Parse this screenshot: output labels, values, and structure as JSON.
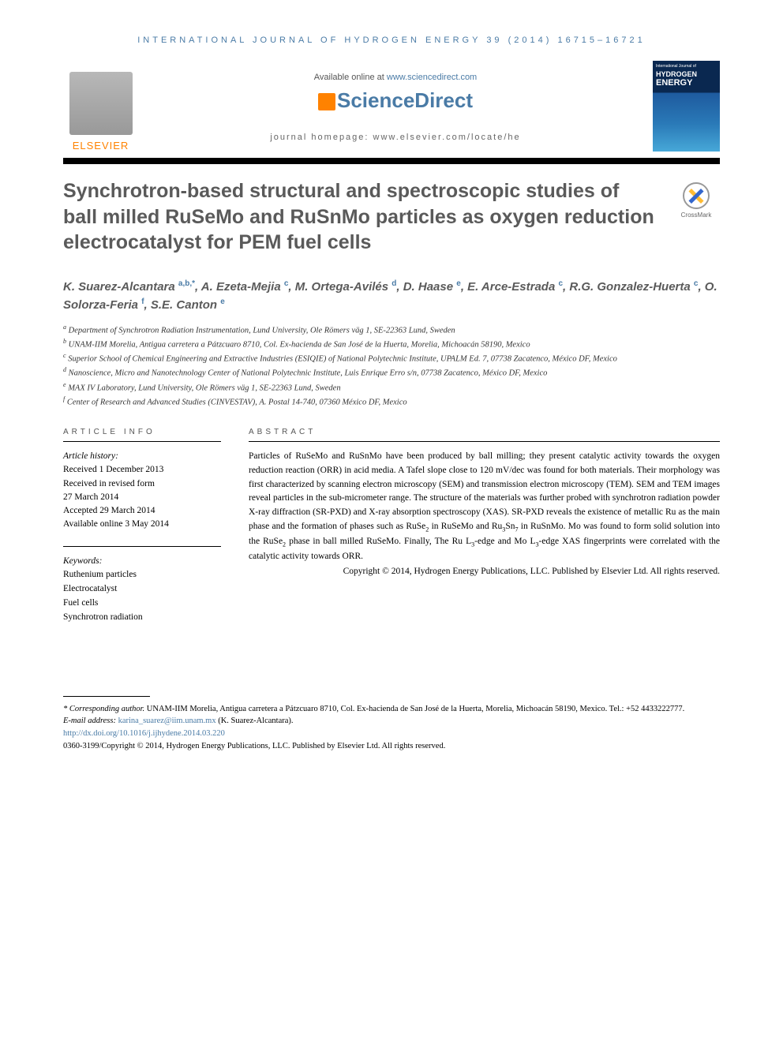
{
  "journal_header": "INTERNATIONAL JOURNAL OF HYDROGEN ENERGY 39 (2014) 16715–16721",
  "available_online": {
    "prefix": "Available online at ",
    "link": "www.sciencedirect.com"
  },
  "sciencedirect": "ScienceDirect",
  "homepage": "journal homepage: www.elsevier.com/locate/he",
  "elsevier": "ELSEVIER",
  "cover": {
    "line1": "International Journal of",
    "line2": "HYDROGEN",
    "line3": "ENERGY"
  },
  "crossmark": "CrossMark",
  "title": "Synchrotron-based structural and spectroscopic studies of ball milled RuSeMo and RuSnMo particles as oxygen reduction electrocatalyst for PEM fuel cells",
  "authors_html": "K. Suarez-Alcantara <sup>a,b,*</sup>, A. Ezeta-Mejia <sup>c</sup>, M. Ortega-Avilés <sup>d</sup>, D. Haase <sup>e</sup>, E. Arce-Estrada <sup>c</sup>, R.G. Gonzalez-Huerta <sup>c</sup>, O. Solorza-Feria <sup>f</sup>, S.E. Canton <sup>e</sup>",
  "affiliations": [
    {
      "sup": "a",
      "text": "Department of Synchrotron Radiation Instrumentation, Lund University, Ole Römers väg 1, SE-22363 Lund, Sweden"
    },
    {
      "sup": "b",
      "text": "UNAM-IIM Morelia, Antigua carretera a Pátzcuaro 8710, Col. Ex-hacienda de San José de la Huerta, Morelia, Michoacán 58190, Mexico"
    },
    {
      "sup": "c",
      "text": "Superior School of Chemical Engineering and Extractive Industries (ESIQIE) of National Polytechnic Institute, UPALM Ed. 7, 07738 Zacatenco, México DF, Mexico"
    },
    {
      "sup": "d",
      "text": "Nanoscience, Micro and Nanotechnology Center of National Polytechnic Institute, Luis Enrique Erro s/n, 07738 Zacatenco, México DF, Mexico"
    },
    {
      "sup": "e",
      "text": "MAX IV Laboratory, Lund University, Ole Römers väg 1, SE-22363 Lund, Sweden"
    },
    {
      "sup": "f",
      "text": "Center of Research and Advanced Studies (CINVESTAV), A. Postal 14-740, 07360 México DF, Mexico"
    }
  ],
  "article_info_heading": "ARTICLE INFO",
  "abstract_heading": "ABSTRACT",
  "history": {
    "label": "Article history:",
    "lines": [
      "Received 1 December 2013",
      "Received in revised form",
      "27 March 2014",
      "Accepted 29 March 2014",
      "Available online 3 May 2014"
    ]
  },
  "keywords": {
    "label": "Keywords:",
    "items": [
      "Ruthenium particles",
      "Electrocatalyst",
      "Fuel cells",
      "Synchrotron radiation"
    ]
  },
  "abstract_html": "Particles of RuSeMo and RuSnMo have been produced by ball milling; they present catalytic activity towards the oxygen reduction reaction (ORR) in acid media. A Tafel slope close to 120 mV/dec was found for both materials. Their morphology was first characterized by scanning electron microscopy (SEM) and transmission electron microscopy (TEM). SEM and TEM images reveal particles in the sub-micrometer range. The structure of the materials was further probed with synchrotron radiation powder X-ray diffraction (SR-PXD) and X-ray absorption spectroscopy (XAS). SR-PXD reveals the existence of metallic Ru as the main phase and the formation of phases such as RuSe<sub>2</sub> in RuSeMo and Ru<sub>3</sub>Sn<sub>7</sub> in RuSnMo. Mo was found to form solid solution into the RuSe<sub>2</sub> phase in ball milled RuSeMo. Finally, The Ru L<sub>3</sub>-edge and Mo L<sub>3</sub>-edge XAS fingerprints were correlated with the catalytic activity towards ORR.",
  "copyright": "Copyright © 2014, Hydrogen Energy Publications, LLC. Published by Elsevier Ltd. All rights reserved.",
  "footer": {
    "corresponding_label": "* Corresponding author.",
    "corresponding_text": " UNAM-IIM Morelia, Antigua carretera a Pátzcuaro 8710, Col. Ex-hacienda de San José de la Huerta, Morelia, Michoacán 58190, Mexico. Tel.: +52 4433222777.",
    "email_label": "E-mail address: ",
    "email": "karina_suarez@iim.unam.mx",
    "email_suffix": " (K. Suarez-Alcantara).",
    "doi": "http://dx.doi.org/10.1016/j.ijhydene.2014.03.220",
    "issn": "0360-3199/Copyright © 2014, Hydrogen Energy Publications, LLC. Published by Elsevier Ltd. All rights reserved."
  },
  "colors": {
    "link": "#4a7ba6",
    "orange": "#ff8200",
    "title_gray": "#5a5a5a"
  }
}
